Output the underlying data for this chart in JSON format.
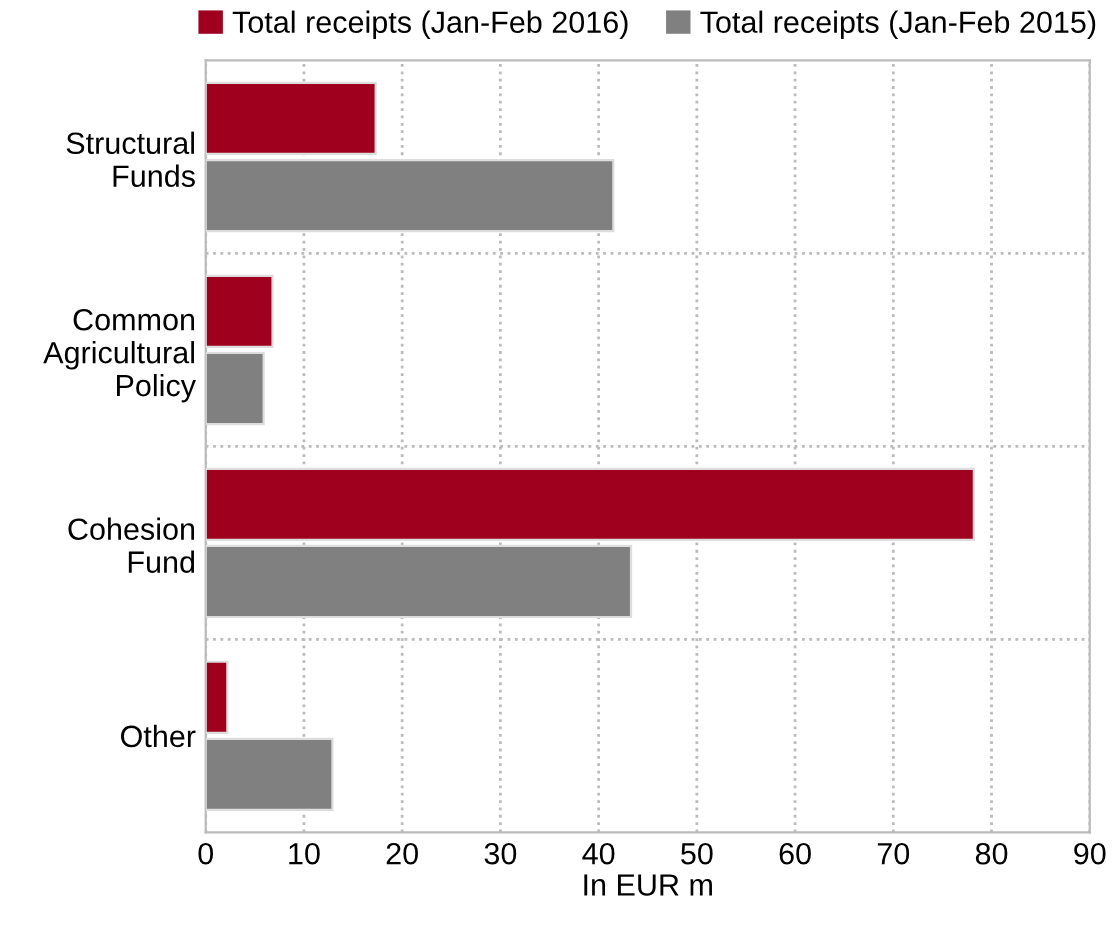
{
  "chart_data": {
    "type": "bar",
    "orientation": "horizontal",
    "xlabel": "In EUR m",
    "categories": [
      "Structural\nFunds",
      "Common\nAgricultural\nPolicy",
      "Cohesion\nFund",
      "Other"
    ],
    "series": [
      {
        "name": "Total receipts (Jan-Feb 2016)",
        "color": "#9e001e",
        "values": [
          17.3,
          6.8,
          78.2,
          2.2
        ]
      },
      {
        "name": "Total receipts (Jan-Feb 2015)",
        "color": "#808080",
        "values": [
          41.5,
          5.9,
          43.3,
          12.9
        ]
      }
    ],
    "xlim": [
      0,
      90
    ],
    "xticks": [
      0,
      10,
      20,
      30,
      40,
      50,
      60,
      70,
      80,
      90
    ],
    "grid": true,
    "legend": "top"
  }
}
